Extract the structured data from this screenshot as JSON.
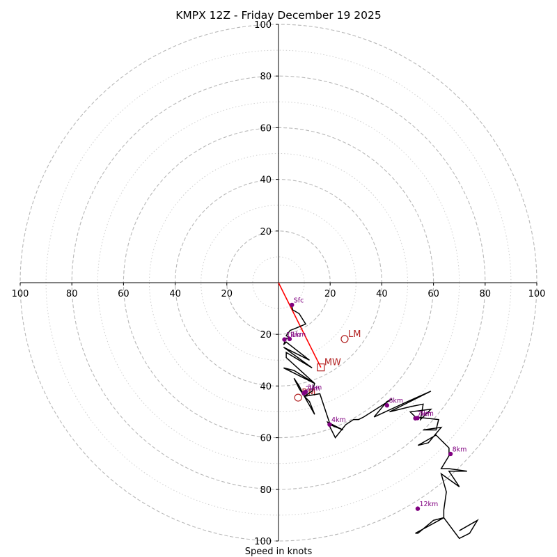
{
  "chart_data": {
    "type": "hodograph",
    "title": "KMPX 12Z - Friday December 19 2025",
    "xlabel": "Speed in knots",
    "axis_range": [
      -100,
      100
    ],
    "rings": {
      "dashed": [
        20,
        40,
        60,
        80,
        100
      ],
      "dotted": [
        10,
        30,
        50,
        70,
        90
      ]
    },
    "x_ticks": [
      {
        "value": -100,
        "label": "100"
      },
      {
        "value": -80,
        "label": "80"
      },
      {
        "value": -60,
        "label": "60"
      },
      {
        "value": -40,
        "label": "40"
      },
      {
        "value": -20,
        "label": "20"
      },
      {
        "value": 20,
        "label": "20"
      },
      {
        "value": 40,
        "label": "40"
      },
      {
        "value": 60,
        "label": "60"
      },
      {
        "value": 80,
        "label": "80"
      },
      {
        "value": 100,
        "label": "100"
      }
    ],
    "y_ticks": [
      {
        "value": 100,
        "label": "100"
      },
      {
        "value": 80,
        "label": "80"
      },
      {
        "value": 60,
        "label": "60"
      },
      {
        "value": 40,
        "label": "40"
      },
      {
        "value": 20,
        "label": "20"
      },
      {
        "value": -20,
        "label": "20"
      },
      {
        "value": -40,
        "label": "40"
      },
      {
        "value": -60,
        "label": "60"
      },
      {
        "value": -80,
        "label": "80"
      },
      {
        "value": -100,
        "label": "100"
      }
    ],
    "trace": [
      [
        5,
        -8.5
      ],
      [
        5.5,
        -10.5
      ],
      [
        8,
        -12
      ],
      [
        10.5,
        -16
      ],
      [
        7,
        -17.5
      ],
      [
        4.5,
        -18.5
      ],
      [
        3,
        -20.5
      ],
      [
        4.5,
        -21.5
      ],
      [
        3,
        -21.5
      ],
      [
        2,
        -24
      ],
      [
        3,
        -23
      ],
      [
        12,
        -30
      ],
      [
        2,
        -25
      ],
      [
        13,
        -33
      ],
      [
        3,
        -27
      ],
      [
        3,
        -29
      ],
      [
        14,
        -39
      ],
      [
        2,
        -33
      ],
      [
        6,
        -34
      ],
      [
        14,
        -39
      ],
      [
        13,
        -42
      ],
      [
        10,
        -44
      ],
      [
        8,
        -40
      ],
      [
        6,
        -37
      ],
      [
        8,
        -41
      ],
      [
        10,
        -44
      ],
      [
        12,
        -46
      ],
      [
        14,
        -51
      ],
      [
        10,
        -44
      ],
      [
        16,
        -43
      ],
      [
        19,
        -52
      ],
      [
        20,
        -55
      ],
      [
        25,
        -57
      ],
      [
        19,
        -54
      ],
      [
        22,
        -60
      ],
      [
        26,
        -55
      ],
      [
        29,
        -53
      ],
      [
        31,
        -53
      ],
      [
        33,
        -52
      ],
      [
        44,
        -45
      ],
      [
        42,
        -46
      ],
      [
        37,
        -52
      ],
      [
        50,
        -46
      ],
      [
        59,
        -42
      ],
      [
        43,
        -50
      ],
      [
        51,
        -48
      ],
      [
        56,
        -47
      ],
      [
        55,
        -53
      ],
      [
        59,
        -49
      ],
      [
        51,
        -50
      ],
      [
        53,
        -52
      ],
      [
        62,
        -53
      ],
      [
        61,
        -57
      ],
      [
        56,
        -57
      ],
      [
        63,
        -56
      ],
      [
        58,
        -62
      ],
      [
        54,
        -63
      ],
      [
        61,
        -59
      ],
      [
        66,
        -64
      ],
      [
        66,
        -67
      ],
      [
        63,
        -72
      ],
      [
        66,
        -72
      ],
      [
        73,
        -73
      ],
      [
        66,
        -73
      ],
      [
        70,
        -79
      ],
      [
        63,
        -74
      ],
      [
        65,
        -81
      ],
      [
        64,
        -88
      ],
      [
        64,
        -91
      ],
      [
        60,
        -92
      ],
      [
        54,
        -97
      ],
      [
        53,
        -97
      ],
      [
        64,
        -91
      ],
      [
        70,
        -99
      ],
      [
        74,
        -97
      ],
      [
        77,
        -92
      ],
      [
        70,
        -96
      ]
    ],
    "height_markers": [
      {
        "label": "Sfc",
        "u": 5.2,
        "v": -8.6
      },
      {
        "label": "1km",
        "u": 2.3,
        "v": -22.0
      },
      {
        "label": "1km",
        "u": 4.3,
        "v": -21.8
      },
      {
        "label": "2km",
        "u": 9.8,
        "v": -42.8
      },
      {
        "label": "3km",
        "u": 10.5,
        "v": -42.3
      },
      {
        "label": "4km",
        "u": 19.8,
        "v": -54.9
      },
      {
        "label": "6km",
        "u": 42.0,
        "v": -47.5
      },
      {
        "label": "7km",
        "u": 53.0,
        "v": -52.5
      },
      {
        "label": "7km",
        "u": 53.8,
        "v": -52.4
      },
      {
        "label": "8km",
        "u": 66.6,
        "v": -66.3
      },
      {
        "label": "12km",
        "u": 53.9,
        "v": -87.5
      }
    ],
    "storm_motion": {
      "vector": {
        "from": [
          0,
          0
        ],
        "to": [
          16.4,
          -32.8
        ]
      },
      "points": [
        {
          "label": "MW",
          "u": 16.4,
          "v": -32.8,
          "marker": "square"
        },
        {
          "label": "LM",
          "u": 25.6,
          "v": -21.8,
          "marker": "circle"
        },
        {
          "label": "RM",
          "u": 7.6,
          "v": -44.5,
          "marker": "circle"
        }
      ]
    },
    "colors": {
      "trace": "#000000",
      "height_marker": "#800080",
      "storm_motion": "#b22222",
      "vector": "#ff0000",
      "grid": "#b8b8b8"
    }
  }
}
